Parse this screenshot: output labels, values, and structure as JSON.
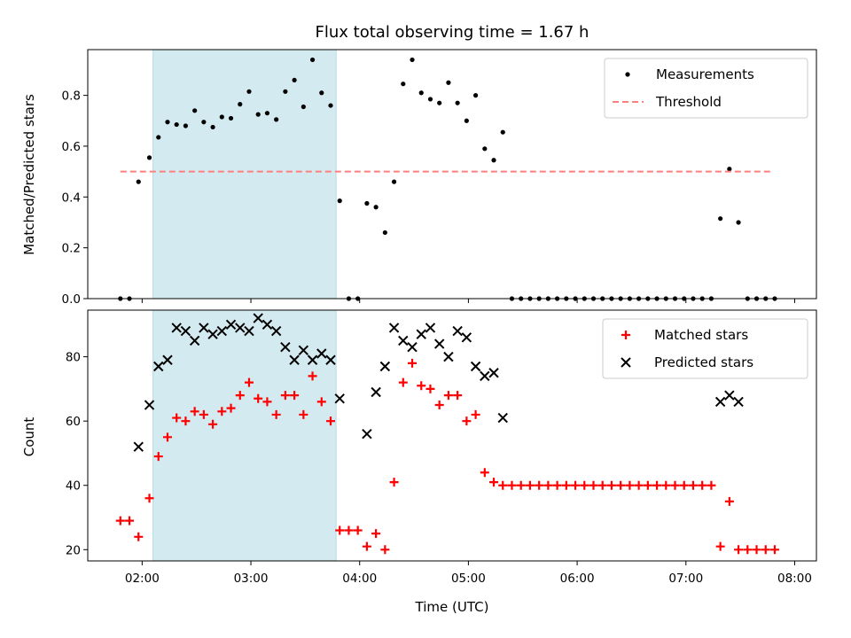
{
  "chart_data": {
    "type": "scatter",
    "title": "Flux total observing time = 1.67 h",
    "xlabel": "Time (UTC)",
    "x_ticks": [
      "02:00",
      "03:00",
      "04:00",
      "05:00",
      "06:00",
      "07:00",
      "08:00"
    ],
    "xlim": [
      "01:30",
      "08:12"
    ],
    "shaded_interval": {
      "start": "02:06",
      "end": "03:47",
      "color": "#d3eaf0"
    },
    "panels": [
      {
        "ylabel": "Matched/Predicted stars",
        "ylim": [
          0,
          0.98
        ],
        "y_ticks": [
          "0.0",
          "0.2",
          "0.4",
          "0.6",
          "0.8"
        ],
        "y_tick_values": [
          0,
          0.2,
          0.4,
          0.6,
          0.8
        ],
        "legend": {
          "placement": "top-right",
          "entries": [
            "Measurements",
            "Threshold"
          ]
        },
        "series": [
          {
            "name": "Measurements",
            "marker": "dot",
            "color": "#000000",
            "points": [
              [
                "01:48",
                0
              ],
              [
                "01:53",
                0
              ],
              [
                "01:58",
                0.46
              ],
              [
                "02:04",
                0.555
              ],
              [
                "02:09",
                0.635
              ],
              [
                "02:14",
                0.695
              ],
              [
                "02:19",
                0.685
              ],
              [
                "02:24",
                0.68
              ],
              [
                "02:29",
                0.74
              ],
              [
                "02:34",
                0.695
              ],
              [
                "02:39",
                0.675
              ],
              [
                "02:44",
                0.715
              ],
              [
                "02:49",
                0.71
              ],
              [
                "02:54",
                0.765
              ],
              [
                "02:59",
                0.815
              ],
              [
                "03:04",
                0.725
              ],
              [
                "03:09",
                0.73
              ],
              [
                "03:14",
                0.705
              ],
              [
                "03:19",
                0.815
              ],
              [
                "03:24",
                0.86
              ],
              [
                "03:29",
                0.755
              ],
              [
                "03:34",
                0.94
              ],
              [
                "03:39",
                0.81
              ],
              [
                "03:44",
                0.76
              ],
              [
                "03:49",
                0.385
              ],
              [
                "03:54",
                0
              ],
              [
                "03:59",
                0
              ],
              [
                "04:04",
                0.375
              ],
              [
                "04:09",
                0.36
              ],
              [
                "04:14",
                0.26
              ],
              [
                "04:19",
                0.46
              ],
              [
                "04:24",
                0.845
              ],
              [
                "04:29",
                0.94
              ],
              [
                "04:34",
                0.81
              ],
              [
                "04:39",
                0.785
              ],
              [
                "04:44",
                0.77
              ],
              [
                "04:49",
                0.85
              ],
              [
                "04:54",
                0.77
              ],
              [
                "04:59",
                0.7
              ],
              [
                "05:04",
                0.8
              ],
              [
                "05:09",
                0.59
              ],
              [
                "05:14",
                0.545
              ],
              [
                "05:19",
                0.655
              ],
              [
                "05:24",
                0
              ],
              [
                "05:29",
                0
              ],
              [
                "05:34",
                0
              ],
              [
                "05:39",
                0
              ],
              [
                "05:44",
                0
              ],
              [
                "05:49",
                0
              ],
              [
                "05:54",
                0
              ],
              [
                "05:59",
                0
              ],
              [
                "06:04",
                0
              ],
              [
                "06:09",
                0
              ],
              [
                "06:14",
                0
              ],
              [
                "06:19",
                0
              ],
              [
                "06:24",
                0
              ],
              [
                "06:29",
                0
              ],
              [
                "06:34",
                0
              ],
              [
                "06:39",
                0
              ],
              [
                "06:44",
                0
              ],
              [
                "06:49",
                0
              ],
              [
                "06:54",
                0
              ],
              [
                "06:59",
                0
              ],
              [
                "07:04",
                0
              ],
              [
                "07:09",
                0
              ],
              [
                "07:14",
                0
              ],
              [
                "07:19",
                0.315
              ],
              [
                "07:24",
                0.51
              ],
              [
                "07:29",
                0.3
              ],
              [
                "07:34",
                0
              ],
              [
                "07:39",
                0
              ],
              [
                "07:44",
                0
              ],
              [
                "07:49",
                0
              ]
            ]
          },
          {
            "name": "Threshold",
            "style": "dashed-line",
            "color": "#ff7f7f",
            "points": [
              [
                "01:48",
                0.5
              ],
              [
                "07:48",
                0.5
              ]
            ]
          }
        ]
      },
      {
        "ylabel": "Count",
        "ylim": [
          16.5,
          94.5
        ],
        "y_ticks": [
          "20",
          "40",
          "60",
          "80"
        ],
        "y_tick_values": [
          20,
          40,
          60,
          80
        ],
        "legend": {
          "placement": "top-right",
          "entries": [
            "Matched stars",
            "Predicted stars"
          ]
        },
        "series": [
          {
            "name": "Matched stars",
            "marker": "plus",
            "color": "#ff0000",
            "points": [
              [
                "01:48",
                29
              ],
              [
                "01:53",
                29
              ],
              [
                "01:58",
                24
              ],
              [
                "02:04",
                36
              ],
              [
                "02:09",
                49
              ],
              [
                "02:14",
                55
              ],
              [
                "02:19",
                61
              ],
              [
                "02:24",
                60
              ],
              [
                "02:29",
                63
              ],
              [
                "02:34",
                62
              ],
              [
                "02:39",
                59
              ],
              [
                "02:44",
                63
              ],
              [
                "02:49",
                64
              ],
              [
                "02:54",
                68
              ],
              [
                "02:59",
                72
              ],
              [
                "03:04",
                67
              ],
              [
                "03:09",
                66
              ],
              [
                "03:14",
                62
              ],
              [
                "03:19",
                68
              ],
              [
                "03:24",
                68
              ],
              [
                "03:29",
                62
              ],
              [
                "03:34",
                74
              ],
              [
                "03:39",
                66
              ],
              [
                "03:44",
                60
              ],
              [
                "03:49",
                26
              ],
              [
                "03:54",
                26
              ],
              [
                "03:59",
                26
              ],
              [
                "04:04",
                21
              ],
              [
                "04:09",
                25
              ],
              [
                "04:14",
                20
              ],
              [
                "04:19",
                41
              ],
              [
                "04:24",
                72
              ],
              [
                "04:29",
                78
              ],
              [
                "04:34",
                71
              ],
              [
                "04:39",
                70
              ],
              [
                "04:44",
                65
              ],
              [
                "04:49",
                68
              ],
              [
                "04:54",
                68
              ],
              [
                "04:59",
                60
              ],
              [
                "05:04",
                62
              ],
              [
                "05:09",
                44
              ],
              [
                "05:14",
                41
              ],
              [
                "05:19",
                40
              ],
              [
                "05:24",
                40
              ],
              [
                "05:29",
                40
              ],
              [
                "05:34",
                40
              ],
              [
                "05:39",
                40
              ],
              [
                "05:44",
                40
              ],
              [
                "05:49",
                40
              ],
              [
                "05:54",
                40
              ],
              [
                "05:59",
                40
              ],
              [
                "06:04",
                40
              ],
              [
                "06:09",
                40
              ],
              [
                "06:14",
                40
              ],
              [
                "06:19",
                40
              ],
              [
                "06:24",
                40
              ],
              [
                "06:29",
                40
              ],
              [
                "06:34",
                40
              ],
              [
                "06:39",
                40
              ],
              [
                "06:44",
                40
              ],
              [
                "06:49",
                40
              ],
              [
                "06:54",
                40
              ],
              [
                "06:59",
                40
              ],
              [
                "07:04",
                40
              ],
              [
                "07:09",
                40
              ],
              [
                "07:14",
                40
              ],
              [
                "07:19",
                21
              ],
              [
                "07:24",
                35
              ],
              [
                "07:29",
                20
              ],
              [
                "07:34",
                20
              ],
              [
                "07:39",
                20
              ],
              [
                "07:44",
                20
              ],
              [
                "07:49",
                20
              ]
            ]
          },
          {
            "name": "Predicted stars",
            "marker": "x",
            "color": "#000000",
            "points": [
              [
                "01:58",
                52
              ],
              [
                "02:04",
                65
              ],
              [
                "02:09",
                77
              ],
              [
                "02:14",
                79
              ],
              [
                "02:19",
                89
              ],
              [
                "02:24",
                88
              ],
              [
                "02:29",
                85
              ],
              [
                "02:34",
                89
              ],
              [
                "02:39",
                87
              ],
              [
                "02:44",
                88
              ],
              [
                "02:49",
                90
              ],
              [
                "02:54",
                89
              ],
              [
                "02:59",
                88
              ],
              [
                "03:04",
                92
              ],
              [
                "03:09",
                90
              ],
              [
                "03:14",
                88
              ],
              [
                "03:19",
                83
              ],
              [
                "03:24",
                79
              ],
              [
                "03:29",
                82
              ],
              [
                "03:34",
                79
              ],
              [
                "03:39",
                81
              ],
              [
                "03:44",
                79
              ],
              [
                "03:49",
                67
              ],
              [
                "04:04",
                56
              ],
              [
                "04:09",
                69
              ],
              [
                "04:14",
                77
              ],
              [
                "04:19",
                89
              ],
              [
                "04:24",
                85
              ],
              [
                "04:29",
                83
              ],
              [
                "04:34",
                87
              ],
              [
                "04:39",
                89
              ],
              [
                "04:44",
                84
              ],
              [
                "04:49",
                80
              ],
              [
                "04:54",
                88
              ],
              [
                "04:59",
                86
              ],
              [
                "05:04",
                77
              ],
              [
                "05:09",
                74
              ],
              [
                "05:14",
                75
              ],
              [
                "05:19",
                61
              ],
              [
                "07:19",
                66
              ],
              [
                "07:24",
                68
              ],
              [
                "07:29",
                66
              ]
            ]
          }
        ]
      }
    ]
  }
}
